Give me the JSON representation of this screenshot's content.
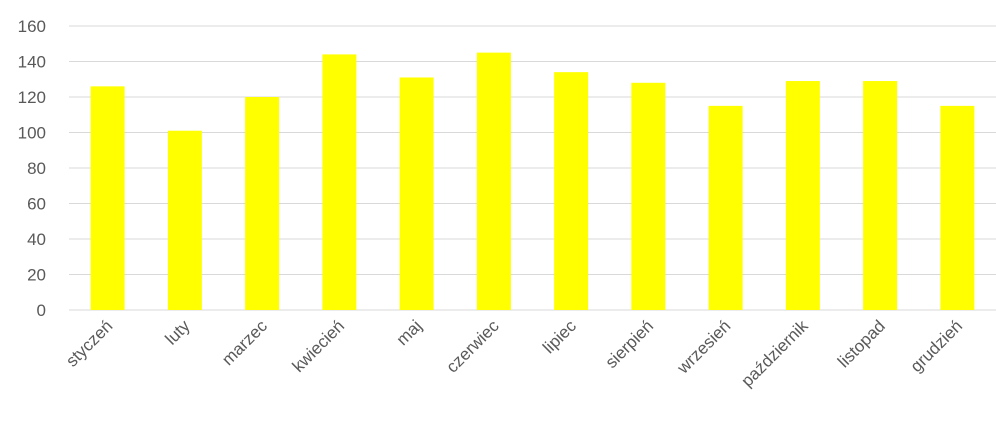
{
  "chart_data": {
    "type": "bar",
    "title": "",
    "xlabel": "",
    "ylabel": "",
    "categories": [
      "styczeń",
      "luty",
      "marzec",
      "kwiecień",
      "maj",
      "czerwiec",
      "lipiec",
      "sierpień",
      "wrzesień",
      "październik",
      "listopad",
      "grudzień"
    ],
    "values": [
      126,
      101,
      120,
      144,
      131,
      145,
      134,
      128,
      115,
      129,
      129,
      115
    ],
    "ylim": [
      0,
      160
    ],
    "yticks": [
      0,
      20,
      40,
      60,
      80,
      100,
      120,
      140,
      160
    ],
    "grid": true,
    "legend": "none",
    "bar_color": "#ffff00"
  }
}
